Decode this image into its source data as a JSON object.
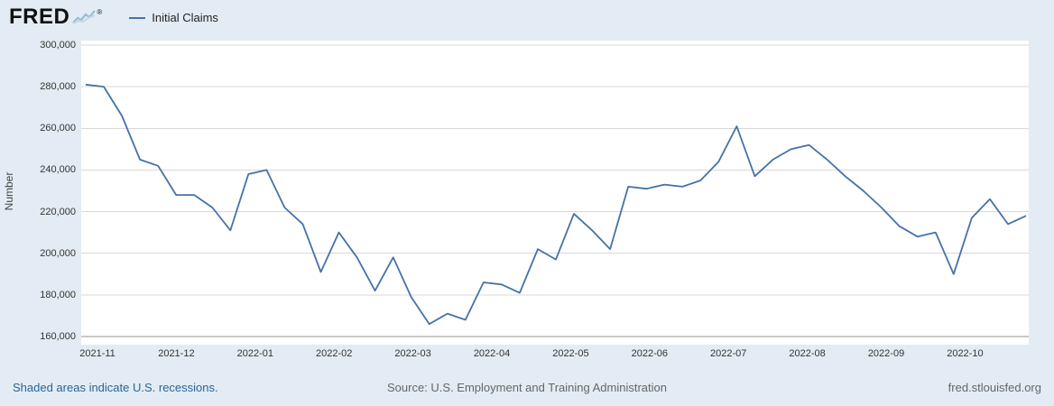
{
  "header": {
    "logo_text": "FRED",
    "logo_registered": "®",
    "legend": {
      "series_label": "Initial Claims",
      "series_color": "#4572a7"
    }
  },
  "chart_data": {
    "type": "line",
    "title": "Initial Claims",
    "xlabel": "",
    "ylabel": "Number",
    "ylim": [
      160000,
      300000
    ],
    "grid": true,
    "legend_position": "top-left",
    "y_ticks": [
      "300,000",
      "280,000",
      "260,000",
      "240,000",
      "220,000",
      "200,000",
      "180,000",
      "160,000"
    ],
    "y_tick_values": [
      300000,
      280000,
      260000,
      240000,
      220000,
      200000,
      180000,
      160000
    ],
    "x_ticks": [
      "2021-11",
      "2021-12",
      "2022-01",
      "2022-02",
      "2022-03",
      "2022-04",
      "2022-05",
      "2022-06",
      "2022-07",
      "2022-08",
      "2022-09",
      "2022-10"
    ],
    "series": [
      {
        "name": "Initial Claims",
        "color": "#4572a7",
        "values": [
          281000,
          280000,
          266000,
          245000,
          242000,
          228000,
          228000,
          222000,
          211000,
          238000,
          240000,
          222000,
          214000,
          191000,
          210000,
          198000,
          182000,
          198000,
          179000,
          166000,
          171000,
          168000,
          186000,
          185000,
          181000,
          202000,
          197000,
          219000,
          211000,
          202000,
          232000,
          231000,
          233000,
          232000,
          235000,
          244000,
          261000,
          237000,
          245000,
          250000,
          252000,
          245000,
          237000,
          230000,
          222000,
          213000,
          208000,
          210000,
          190000,
          217000,
          226000,
          214000,
          218000
        ]
      }
    ]
  },
  "footer": {
    "recession_note": "Shaded areas indicate U.S. recessions.",
    "source": "Source: U.S. Employment and Training Administration",
    "site": "fred.stlouisfed.org"
  },
  "colors": {
    "background": "#e3ecf4",
    "plot_background": "#ffffff",
    "gridline": "#d9d9d9",
    "axis_line": "#969696",
    "tick_text": "#333333",
    "link": "#2a6496",
    "footer_text": "#666666"
  }
}
